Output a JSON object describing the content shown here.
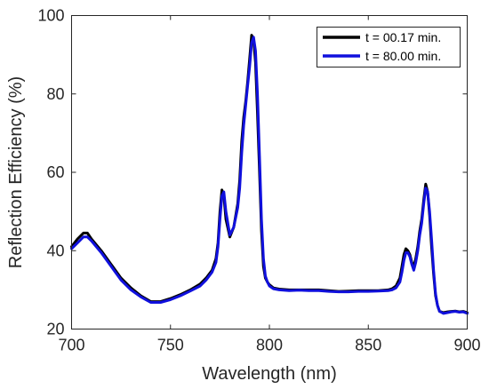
{
  "chart_data": {
    "type": "line",
    "title": "",
    "xlabel": "Wavelength (nm)",
    "ylabel": "Reflection Efficiency (%)",
    "xlim": [
      700,
      900
    ],
    "ylim": [
      20,
      100
    ],
    "xticks": [
      700,
      750,
      800,
      850,
      900
    ],
    "yticks": [
      20,
      40,
      60,
      80,
      100
    ],
    "grid": false,
    "legend_position": "top-right",
    "series": [
      {
        "name": "t = 00.17 min.",
        "color": "#000000",
        "x": [
          700,
          703,
          706,
          708,
          710,
          715,
          720,
          725,
          730,
          735,
          740,
          745,
          750,
          755,
          760,
          765,
          768,
          771,
          773,
          774,
          775,
          776,
          777,
          778,
          780,
          782,
          784,
          785,
          786,
          787,
          788,
          789,
          790,
          791,
          792,
          793,
          794,
          795,
          796,
          797,
          798,
          799,
          800,
          802,
          805,
          810,
          815,
          820,
          825,
          830,
          835,
          840,
          845,
          850,
          855,
          860,
          862,
          864,
          866,
          867,
          868,
          869,
          870,
          871,
          872,
          873,
          874,
          875,
          876,
          877,
          878,
          879,
          880,
          881,
          882,
          883,
          884,
          885,
          886,
          888,
          890,
          892,
          894,
          896,
          898,
          900
        ],
        "y": [
          41,
          43,
          44.5,
          44.5,
          43,
          40,
          36.5,
          33,
          30.5,
          28.5,
          27,
          27,
          27.8,
          28.8,
          30,
          31.5,
          33,
          35,
          38,
          42,
          50,
          55.5,
          54,
          48,
          43.5,
          46,
          52,
          58,
          68,
          74,
          78,
          83,
          89,
          95,
          94,
          88,
          75,
          60,
          45,
          36,
          33,
          32,
          31.3,
          30.5,
          30.2,
          30,
          30,
          30,
          30,
          29.8,
          29.6,
          29.7,
          29.8,
          29.8,
          29.8,
          30,
          30.3,
          31,
          33,
          36,
          39,
          40.5,
          40,
          39,
          37,
          36,
          38,
          41,
          45,
          48,
          53,
          57,
          55,
          49,
          41,
          34,
          28.5,
          26,
          24.5,
          24.2,
          24.4,
          24.5,
          24.6,
          24.4,
          24.5,
          24.2
        ]
      },
      {
        "name": "t = 80.00 min.",
        "color": "#1010dd",
        "x": [
          700,
          703,
          706,
          708,
          710,
          715,
          720,
          725,
          730,
          735,
          740,
          745,
          750,
          755,
          760,
          765,
          768,
          771,
          773,
          774,
          775,
          776,
          777,
          778,
          780,
          782,
          784,
          785,
          786,
          787,
          788,
          789,
          790,
          791,
          792,
          793,
          794,
          795,
          796,
          797,
          798,
          799,
          800,
          802,
          805,
          810,
          815,
          820,
          825,
          830,
          835,
          840,
          845,
          850,
          855,
          860,
          862,
          864,
          866,
          867,
          868,
          869,
          870,
          871,
          872,
          873,
          874,
          875,
          876,
          877,
          878,
          879,
          880,
          881,
          882,
          883,
          884,
          885,
          886,
          888,
          890,
          892,
          894,
          896,
          898,
          900
        ],
        "y": [
          40.5,
          42,
          43.5,
          43.5,
          42.5,
          39.5,
          36,
          32.5,
          30,
          28.2,
          26.8,
          26.8,
          27.5,
          28.5,
          29.7,
          31,
          32.5,
          34.5,
          37,
          41,
          48,
          54,
          55,
          50,
          44,
          46,
          51,
          56,
          65,
          72,
          77,
          82,
          87,
          93,
          94.5,
          91,
          80,
          64,
          48,
          38,
          33.5,
          32,
          31,
          30.3,
          30,
          29.8,
          29.9,
          29.8,
          29.8,
          29.6,
          29.5,
          29.5,
          29.6,
          29.6,
          29.7,
          29.8,
          30,
          30.5,
          32,
          34.5,
          37.5,
          39.5,
          39.5,
          38.5,
          36.5,
          35,
          37,
          40,
          44,
          47,
          52,
          56,
          55,
          50,
          43,
          35,
          29,
          26,
          24.5,
          24,
          24.2,
          24.4,
          24.5,
          24.3,
          24.4,
          24
        ]
      }
    ]
  }
}
